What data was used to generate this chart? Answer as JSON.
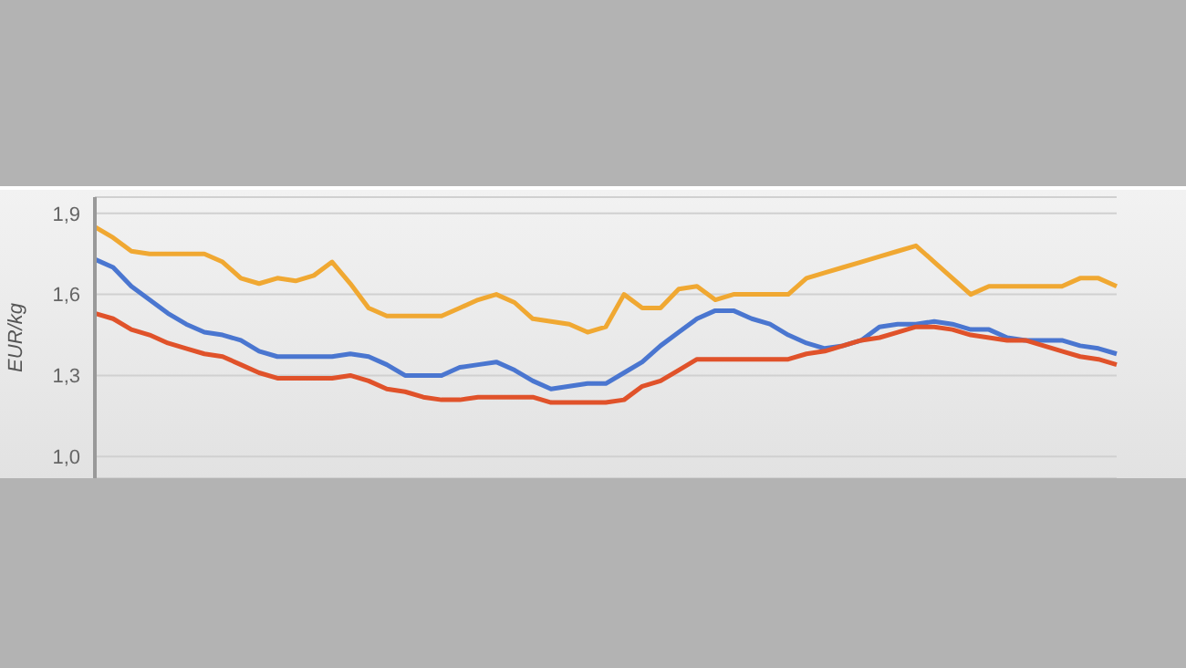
{
  "chart_data": {
    "type": "line",
    "ylabel": "EUR/kg",
    "categories": [
      null,
      null,
      null,
      null,
      null,
      null,
      null,
      null,
      null,
      null,
      null,
      null,
      null,
      null,
      null,
      null,
      null,
      null,
      null,
      null,
      null,
      null,
      null,
      null,
      null,
      null,
      null,
      null,
      null,
      null,
      null,
      null,
      null,
      null,
      null,
      null,
      null,
      null,
      null,
      null,
      null,
      null,
      null,
      null,
      null,
      null,
      null,
      null,
      null,
      null,
      null,
      null,
      null,
      null,
      null,
      null,
      null
    ],
    "series": [
      {
        "color": "#f0a832",
        "values": [
          1.85,
          1.81,
          1.76,
          1.75,
          1.75,
          1.75,
          1.75,
          1.72,
          1.66,
          1.64,
          1.66,
          1.65,
          1.67,
          1.72,
          1.64,
          1.55,
          1.52,
          1.52,
          1.52,
          1.52,
          1.55,
          1.58,
          1.6,
          1.57,
          1.51,
          1.5,
          1.49,
          1.46,
          1.48,
          1.6,
          1.55,
          1.55,
          1.62,
          1.63,
          1.58,
          1.6,
          1.6,
          1.6,
          1.6,
          1.66,
          1.68,
          1.7,
          1.72,
          1.74,
          1.76,
          1.78,
          1.72,
          1.66,
          1.6,
          1.63,
          1.63,
          1.63,
          1.63,
          1.63,
          1.66,
          1.66,
          1.63
        ]
      },
      {
        "color": "#4a76d0",
        "values": [
          1.73,
          1.7,
          1.63,
          1.58,
          1.53,
          1.49,
          1.46,
          1.45,
          1.43,
          1.39,
          1.37,
          1.37,
          1.37,
          1.37,
          1.38,
          1.37,
          1.34,
          1.3,
          1.3,
          1.3,
          1.33,
          1.34,
          1.35,
          1.32,
          1.28,
          1.25,
          1.26,
          1.27,
          1.27,
          1.31,
          1.35,
          1.41,
          1.46,
          1.51,
          1.54,
          1.54,
          1.51,
          1.49,
          1.45,
          1.42,
          1.4,
          1.41,
          1.43,
          1.48,
          1.49,
          1.49,
          1.5,
          1.49,
          1.47,
          1.47,
          1.44,
          1.43,
          1.43,
          1.43,
          1.41,
          1.4,
          1.38
        ]
      },
      {
        "color": "#e0522a",
        "values": [
          1.53,
          1.51,
          1.47,
          1.45,
          1.42,
          1.4,
          1.38,
          1.37,
          1.34,
          1.31,
          1.29,
          1.29,
          1.29,
          1.29,
          1.3,
          1.28,
          1.25,
          1.24,
          1.22,
          1.21,
          1.21,
          1.22,
          1.22,
          1.22,
          1.22,
          1.2,
          1.2,
          1.2,
          1.2,
          1.21,
          1.26,
          1.28,
          1.32,
          1.36,
          1.36,
          1.36,
          1.36,
          1.36,
          1.36,
          1.38,
          1.39,
          1.41,
          1.43,
          1.44,
          1.46,
          1.48,
          1.48,
          1.47,
          1.45,
          1.44,
          1.43,
          1.43,
          1.41,
          1.39,
          1.37,
          1.36,
          1.34
        ]
      }
    ],
    "ylim": [
      0.92,
      1.96
    ],
    "yticks": [
      {
        "value": 1.0,
        "label": "1,0"
      },
      {
        "value": 1.3,
        "label": "1,3"
      },
      {
        "value": 1.6,
        "label": "1,6"
      },
      {
        "value": 1.9,
        "label": "1,9"
      }
    ],
    "grid": "y",
    "marker": "none"
  }
}
